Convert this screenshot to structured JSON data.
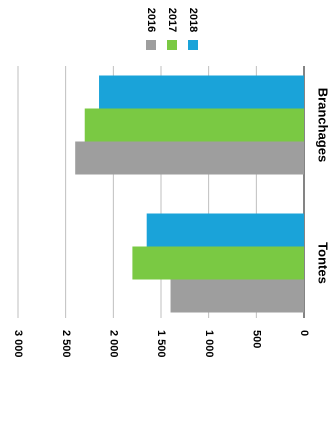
{
  "chart_data": {
    "type": "bar",
    "orientation": "horizontal",
    "rotated": "90deg clockwise (scanned page)",
    "categories": [
      "Tontes",
      "Branchages"
    ],
    "series": [
      {
        "name": "2016",
        "values": [
          1400,
          2400
        ],
        "color": "#9e9e9e"
      },
      {
        "name": "2017",
        "values": [
          1800,
          2300
        ],
        "color": "#7ac943"
      },
      {
        "name": "2018",
        "values": [
          1650,
          2150
        ],
        "color": "#1aa3d9"
      }
    ],
    "value_ticks": [
      "0",
      "500",
      "1 000",
      "1 500",
      "2 000",
      "2 500",
      "3 000"
    ],
    "value_range": [
      0,
      3000
    ],
    "grid": true,
    "legend_position": "top"
  }
}
